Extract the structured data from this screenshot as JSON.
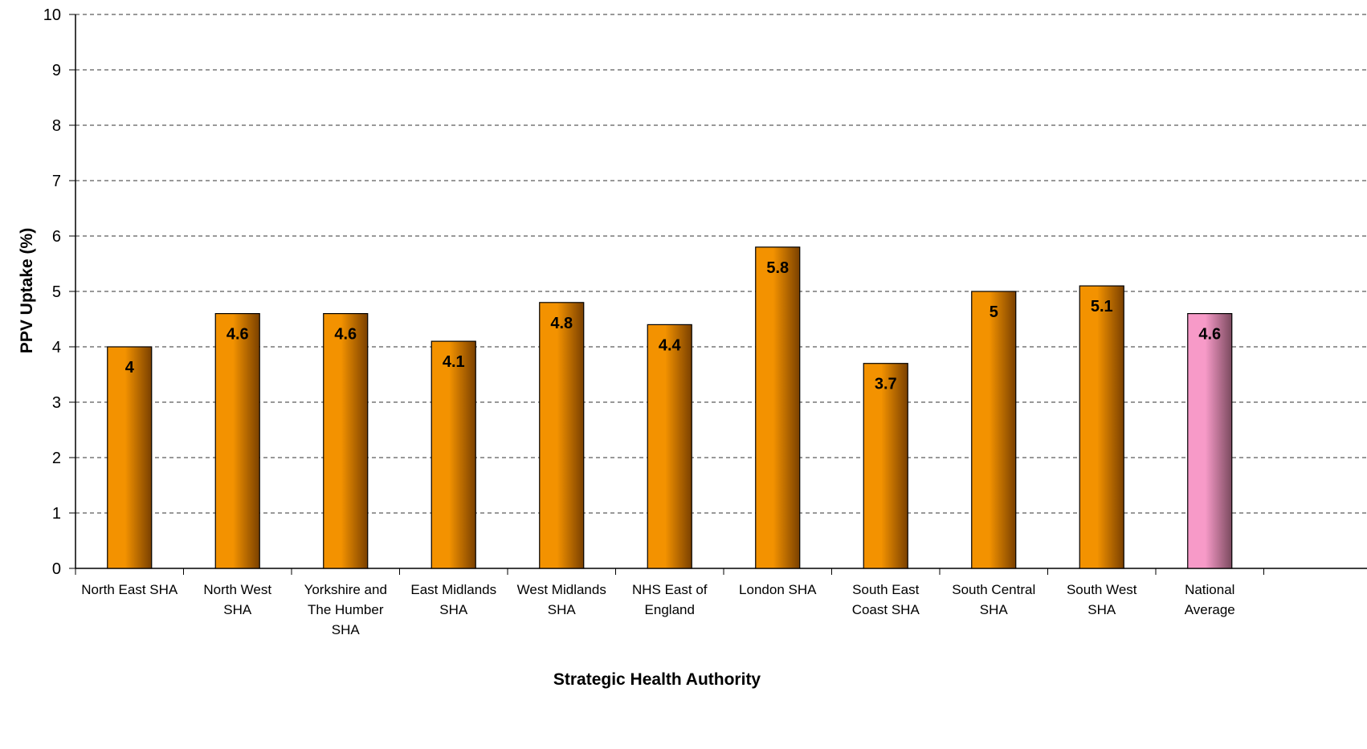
{
  "chart_data": {
    "type": "bar",
    "title": "",
    "xlabel": "Strategic Health Authority",
    "ylabel": "PPV Uptake (%)",
    "ylim": [
      0,
      10
    ],
    "yticks": [
      0,
      1,
      2,
      3,
      4,
      5,
      6,
      7,
      8,
      9,
      10
    ],
    "grid": "horizontal-dashed",
    "legend": "none",
    "categories": [
      [
        "North East SHA"
      ],
      [
        "North West",
        "SHA"
      ],
      [
        "Yorkshire and",
        "The Humber",
        "SHA"
      ],
      [
        "East Midlands",
        "SHA"
      ],
      [
        "West Midlands",
        "SHA"
      ],
      [
        "NHS East of",
        "England"
      ],
      [
        "London SHA"
      ],
      [
        "South East",
        "Coast SHA"
      ],
      [
        "South Central",
        "SHA"
      ],
      [
        "South West",
        "SHA"
      ],
      [
        "National",
        "Average"
      ]
    ],
    "values": [
      4,
      4.6,
      4.6,
      4.1,
      4.8,
      4.4,
      5.8,
      3.7,
      5,
      5.1,
      4.6
    ],
    "value_labels": [
      "4",
      "4.6",
      "4.6",
      "4.1",
      "4.8",
      "4.4",
      "5.8",
      "3.7",
      "5",
      "5.1",
      "4.6"
    ],
    "colors": {
      "bar": "#f39200",
      "bar_shade": "#7a4000",
      "highlight": "#f79ac8",
      "highlight_shade": "#7a4a5e",
      "highlight_index": 10,
      "grid": "#333333",
      "axis": "#000000"
    }
  }
}
